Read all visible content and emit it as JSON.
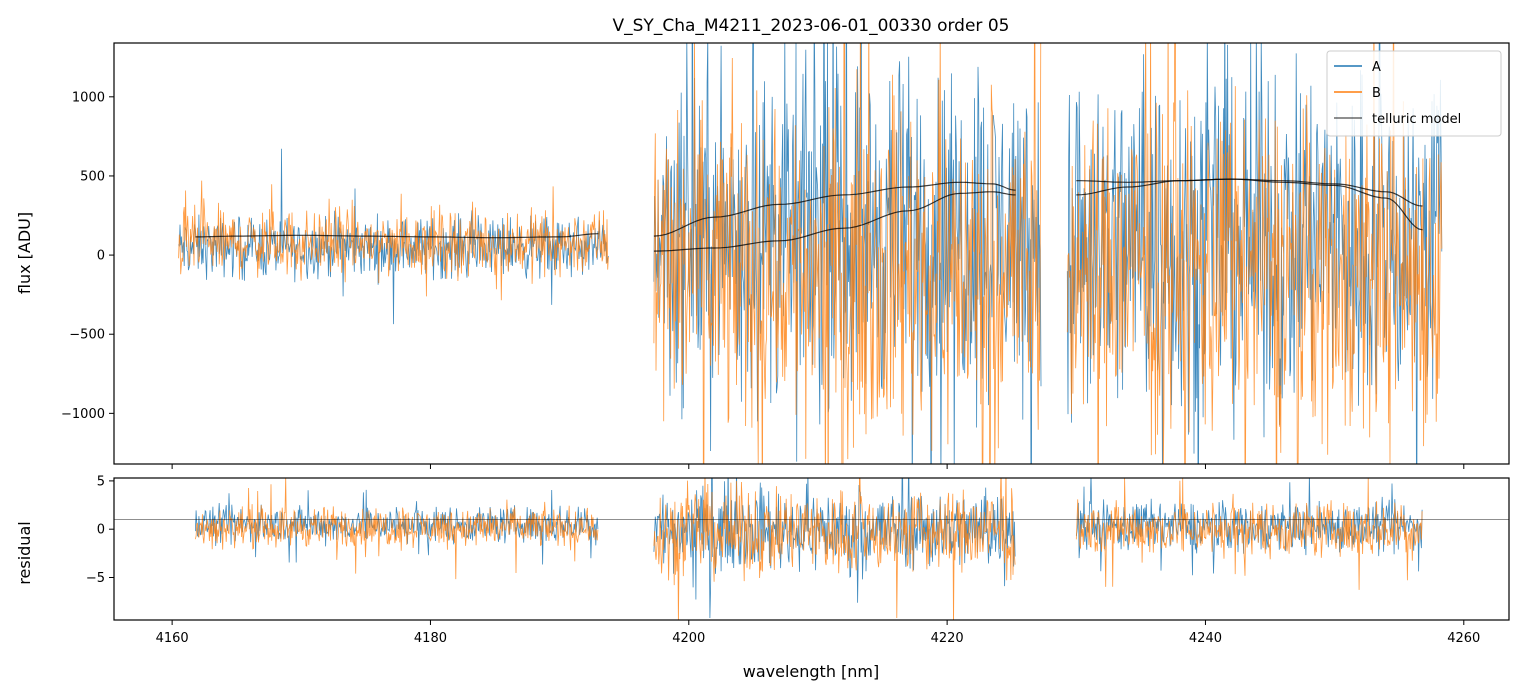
{
  "chart_data": [
    {
      "type": "line",
      "panel": "flux",
      "title": "V_SY_Cha_M4211_2023-06-01_00330  order 05",
      "xlabel": "",
      "ylabel": "flux [ADU]",
      "xlim": [
        4155.5,
        4263.5
      ],
      "ylim": [
        -1320,
        1340
      ],
      "yticks": [
        1000,
        500,
        0,
        -500,
        -1000
      ],
      "ytick_labels": [
        "1000",
        "500",
        "0",
        "−500",
        "−1000"
      ],
      "legend_position": "top-right",
      "colors": {
        "A": "#1f77b4",
        "B": "#ff7f0e",
        "model": "#000000"
      },
      "segments": [
        {
          "x_start": 4160.5,
          "x_end": 4193.8,
          "spread_A": 160,
          "spread_B": 180,
          "center_A": 50,
          "center_B": 80
        },
        {
          "x_start": 4197.3,
          "x_end": 4227.3,
          "spread_A": 900,
          "spread_B": 900,
          "center_A": 150,
          "center_B": -100
        },
        {
          "x_start": 4229.3,
          "x_end": 4258.3,
          "spread_A": 950,
          "spread_B": 900,
          "center_A": 100,
          "center_B": -100
        }
      ],
      "series": [
        {
          "name": "A"
        },
        {
          "name": "B"
        },
        {
          "name": "telluric model"
        }
      ],
      "model_curves": [
        {
          "x": [
            4161.8,
            4165,
            4170,
            4175,
            4180,
            4185,
            4190,
            4193.0
          ],
          "y": [
            115,
            120,
            125,
            120,
            115,
            110,
            115,
            135
          ]
        },
        {
          "x": [
            4197.3,
            4202,
            4207,
            4212,
            4217,
            4221,
            4223.5,
            4225.3
          ],
          "y": [
            120,
            240,
            320,
            380,
            430,
            460,
            450,
            410
          ]
        },
        {
          "x": [
            4197.3,
            4202,
            4207,
            4212,
            4217,
            4221,
            4223.5,
            4225.3
          ],
          "y": [
            25,
            45,
            90,
            170,
            280,
            390,
            400,
            380
          ]
        },
        {
          "x": [
            4230.0,
            4234,
            4238,
            4242,
            4246,
            4250,
            4254,
            4256.8
          ],
          "y": [
            380,
            430,
            470,
            480,
            470,
            450,
            400,
            310
          ]
        },
        {
          "x": [
            4230.0,
            4234,
            4238,
            4242,
            4246,
            4250,
            4254,
            4256.8
          ],
          "y": [
            470,
            460,
            470,
            480,
            460,
            440,
            360,
            160
          ]
        }
      ]
    },
    {
      "type": "line",
      "panel": "residual",
      "title": "",
      "xlabel": "wavelength [nm]",
      "ylabel": "residual",
      "xlim": [
        4155.5,
        4263.5
      ],
      "ylim": [
        -9.4,
        5.3
      ],
      "xticks": [
        4160,
        4180,
        4200,
        4220,
        4240,
        4260
      ],
      "xtick_labels": [
        "4160",
        "4180",
        "4200",
        "4220",
        "4240",
        "4260"
      ],
      "yticks": [
        5,
        0,
        -5
      ],
      "ytick_labels": [
        "5",
        "0",
        "−5"
      ],
      "reference_line_y": 1.0,
      "segments": [
        {
          "x_start": 4161.8,
          "x_end": 4193.0,
          "spread": 1.6,
          "center": 0.5
        },
        {
          "x_start": 4197.3,
          "x_end": 4225.3,
          "spread": 3.5,
          "center": 0.0
        },
        {
          "x_start": 4230.0,
          "x_end": 4256.8,
          "spread": 2.2,
          "center": 0.3
        }
      ],
      "series": [
        {
          "name": "A"
        },
        {
          "name": "B"
        }
      ]
    }
  ]
}
